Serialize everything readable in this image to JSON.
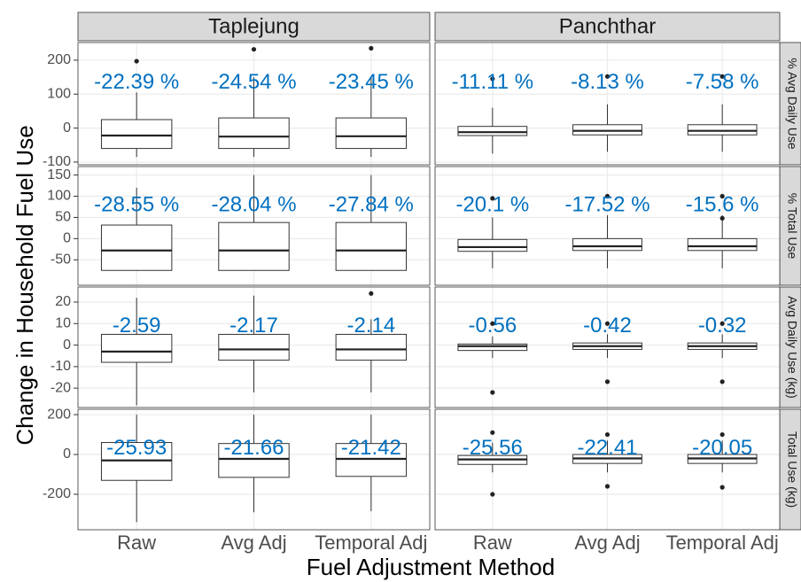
{
  "chart_data": {
    "type": "box",
    "x_label": "Fuel Adjustment Method",
    "y_label": "Change in Household Fuel Use",
    "columns": [
      "Taplejung",
      "Panchthar"
    ],
    "categories": [
      "Raw",
      "Avg Adj",
      "Temporal Adj"
    ],
    "grid": true,
    "rows": [
      {
        "label": "% Avg Daily Use",
        "ylim": [
          -108,
          252
        ],
        "yticks": [
          -100,
          0,
          100,
          200
        ],
        "panels": [
          {
            "annotations": [
              "-22.39 %",
              "-24.54 %",
              "-23.45 %"
            ],
            "boxes": [
              {
                "whisker_low": -85,
                "q1": -60,
                "median": -22,
                "q3": 25,
                "whisker_high": 105,
                "outliers": [
                  197
                ]
              },
              {
                "whisker_low": -85,
                "q1": -60,
                "median": -25,
                "q3": 30,
                "whisker_high": 150,
                "outliers": [
                  232
                ]
              },
              {
                "whisker_low": -85,
                "q1": -60,
                "median": -24,
                "q3": 30,
                "whisker_high": 150,
                "outliers": [
                  235
                ]
              }
            ]
          },
          {
            "annotations": [
              "-11.11 %",
              "-8.13 %",
              "-7.58 %"
            ],
            "boxes": [
              {
                "whisker_low": -75,
                "q1": -22,
                "median": -12,
                "q3": 5,
                "whisker_high": 60,
                "outliers": [
                  145
                ]
              },
              {
                "whisker_low": -70,
                "q1": -20,
                "median": -8,
                "q3": 10,
                "whisker_high": 70,
                "outliers": [
                  152
                ]
              },
              {
                "whisker_low": -70,
                "q1": -20,
                "median": -8,
                "q3": 10,
                "whisker_high": 70,
                "outliers": [
                  152
                ]
              }
            ]
          }
        ]
      },
      {
        "label": "% Total Use",
        "ylim": [
          -110,
          170
        ],
        "yticks": [
          -50,
          0,
          50,
          100,
          150
        ],
        "panels": [
          {
            "annotations": [
              "-28.55 %",
              "-28.04 %",
              "-27.84 %"
            ],
            "boxes": [
              {
                "whisker_low": -75,
                "q1": -75,
                "median": -28,
                "q3": 32,
                "whisker_high": 120,
                "outliers": []
              },
              {
                "whisker_low": -75,
                "q1": -75,
                "median": -28,
                "q3": 38,
                "whisker_high": 150,
                "outliers": []
              },
              {
                "whisker_low": -75,
                "q1": -75,
                "median": -28,
                "q3": 38,
                "whisker_high": 150,
                "outliers": []
              }
            ]
          },
          {
            "annotations": [
              "-20.1 %",
              "-17.52 %",
              "-15.6 %"
            ],
            "boxes": [
              {
                "whisker_low": -70,
                "q1": -30,
                "median": -20,
                "q3": -2,
                "whisker_high": 50,
                "outliers": [
                  95
                ]
              },
              {
                "whisker_low": -70,
                "q1": -28,
                "median": -18,
                "q3": 0,
                "whisker_high": 55,
                "outliers": [
                  100
                ]
              },
              {
                "whisker_low": -70,
                "q1": -28,
                "median": -18,
                "q3": 0,
                "whisker_high": 55,
                "outliers": [
                  100,
                  48
                ]
              }
            ]
          }
        ]
      },
      {
        "label": "Avg Daily Use (kg)",
        "ylim": [
          -29,
          27
        ],
        "yticks": [
          -20,
          -10,
          0,
          10,
          20
        ],
        "panels": [
          {
            "annotations": [
              "-2.59",
              "-2.17",
              "-2.14"
            ],
            "boxes": [
              {
                "whisker_low": -28,
                "q1": -8,
                "median": -3,
                "q3": 5,
                "whisker_high": 22,
                "outliers": []
              },
              {
                "whisker_low": -22,
                "q1": -7,
                "median": -2,
                "q3": 5,
                "whisker_high": 23,
                "outliers": []
              },
              {
                "whisker_low": -22,
                "q1": -7,
                "median": -2,
                "q3": 5,
                "whisker_high": 12,
                "outliers": [
                  24
                ]
              }
            ]
          },
          {
            "annotations": [
              "-0.56",
              "-0.42",
              "-0.32"
            ],
            "boxes": [
              {
                "whisker_low": -6,
                "q1": -2.5,
                "median": -0.5,
                "q3": 0.5,
                "whisker_high": 4,
                "outliers": [
                  -22,
                  10
                ]
              },
              {
                "whisker_low": -6,
                "q1": -2,
                "median": -0.5,
                "q3": 1,
                "whisker_high": 5,
                "outliers": [
                  10,
                  -17
                ]
              },
              {
                "whisker_low": -6,
                "q1": -2,
                "median": -0.5,
                "q3": 1,
                "whisker_high": 5,
                "outliers": [
                  10,
                  -17
                ]
              }
            ]
          }
        ]
      },
      {
        "label": "Total Use (kg)",
        "ylim": [
          -378,
          227
        ],
        "yticks": [
          -200,
          0,
          200
        ],
        "panels": [
          {
            "annotations": [
              "-25.93",
              "-21.66",
              "-21.42"
            ],
            "boxes": [
              {
                "whisker_low": -340,
                "q1": -130,
                "median": -30,
                "q3": 60,
                "whisker_high": 200,
                "outliers": []
              },
              {
                "whisker_low": -290,
                "q1": -115,
                "median": -22,
                "q3": 55,
                "whisker_high": 200,
                "outliers": []
              },
              {
                "whisker_low": -285,
                "q1": -110,
                "median": -22,
                "q3": 55,
                "whisker_high": 200,
                "outliers": []
              }
            ]
          },
          {
            "annotations": [
              "-25.56",
              "-22.41",
              "-20.05"
            ],
            "boxes": [
              {
                "whisker_low": -90,
                "q1": -50,
                "median": -25,
                "q3": -5,
                "whisker_high": 60,
                "outliers": [
                  110,
                  -200
                ]
              },
              {
                "whisker_low": -90,
                "q1": -45,
                "median": -20,
                "q3": 0,
                "whisker_high": 70,
                "outliers": [
                  100,
                  -160
                ]
              },
              {
                "whisker_low": -90,
                "q1": -45,
                "median": -20,
                "q3": 0,
                "whisker_high": 70,
                "outliers": [
                  100,
                  -165
                ]
              }
            ]
          }
        ]
      }
    ]
  }
}
